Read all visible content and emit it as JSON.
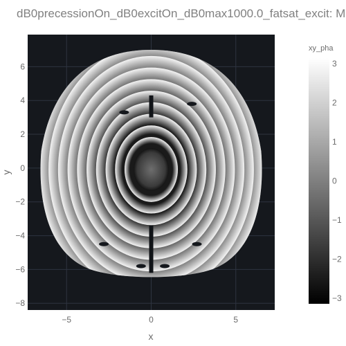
{
  "chart_data": {
    "type": "heatmap",
    "title": "dB0precessionOn_dB0excitOn_dB0max1000.0_fatsat_excit: M",
    "xlabel": "x",
    "ylabel": "y",
    "xlim": [
      -7.3,
      7.3
    ],
    "ylim": [
      -8.4,
      7.9
    ],
    "x_ticks": [
      -5,
      0,
      5
    ],
    "y_ticks": [
      6,
      4,
      2,
      0,
      -2,
      -4,
      -6,
      -8
    ],
    "grid": true,
    "colorbar": {
      "title": "xy_pha",
      "range": [
        -3.14159,
        3.14159
      ],
      "ticks": [
        3,
        2,
        1,
        0,
        -1,
        -2,
        -3
      ],
      "colorscale": "greys",
      "min_color": "#000000",
      "max_color": "#ffffff"
    },
    "phantom": {
      "shape": "head-slice",
      "outer_x_halfwidth": 6.5,
      "outer_y_top": 7.0,
      "outer_y_bottom": -6.6,
      "center_phase": -0.4,
      "ring_count": 10,
      "ring_spacing": 0.72,
      "inner_core_radius": 1.3
    },
    "colors": {
      "plot_background": "#15181d",
      "grid": "#2e3440",
      "text": "#6b6b6b",
      "title": "#808080"
    }
  }
}
